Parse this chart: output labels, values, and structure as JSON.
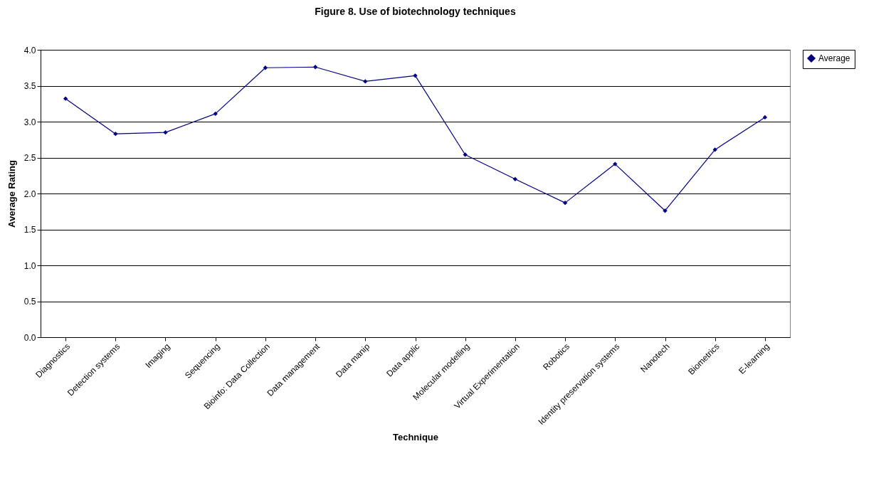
{
  "chart_data": {
    "type": "line",
    "title": "Figure 8. Use of biotechnology techniques",
    "xlabel": "Technique",
    "ylabel": "Average Rating",
    "categories": [
      "Diagnostics",
      "Detection systems",
      "Imaging",
      "Sequencing",
      "Bioinfo: Data Collection",
      "Data management",
      "Data manip",
      "Data applic",
      "Molecular modelling",
      "Virtual Experimentation",
      "Robotics",
      "Identity preservation systems",
      "Nanotech",
      "Biometrics",
      "E-learning"
    ],
    "series": [
      {
        "name": "Average",
        "color": "#000080",
        "values": [
          3.32,
          2.83,
          2.85,
          3.11,
          3.75,
          3.76,
          3.56,
          3.64,
          2.54,
          2.2,
          1.87,
          2.41,
          1.76,
          2.61,
          3.06
        ]
      }
    ],
    "ylim": [
      0,
      4
    ],
    "yticks": [
      {
        "value": 0,
        "label": "0.0"
      },
      {
        "value": 0.5,
        "label": "0.5"
      },
      {
        "value": 1,
        "label": "1.0"
      },
      {
        "value": 1.5,
        "label": "1.5"
      },
      {
        "value": 2,
        "label": "2.0"
      },
      {
        "value": 2.5,
        "label": "2.5"
      },
      {
        "value": 3,
        "label": "3.0"
      },
      {
        "value": 3.5,
        "label": "3.5"
      },
      {
        "value": 4,
        "label": "4.0"
      }
    ],
    "grid": "y",
    "legend": "right",
    "marker": "diamond",
    "line_style": "solid"
  }
}
